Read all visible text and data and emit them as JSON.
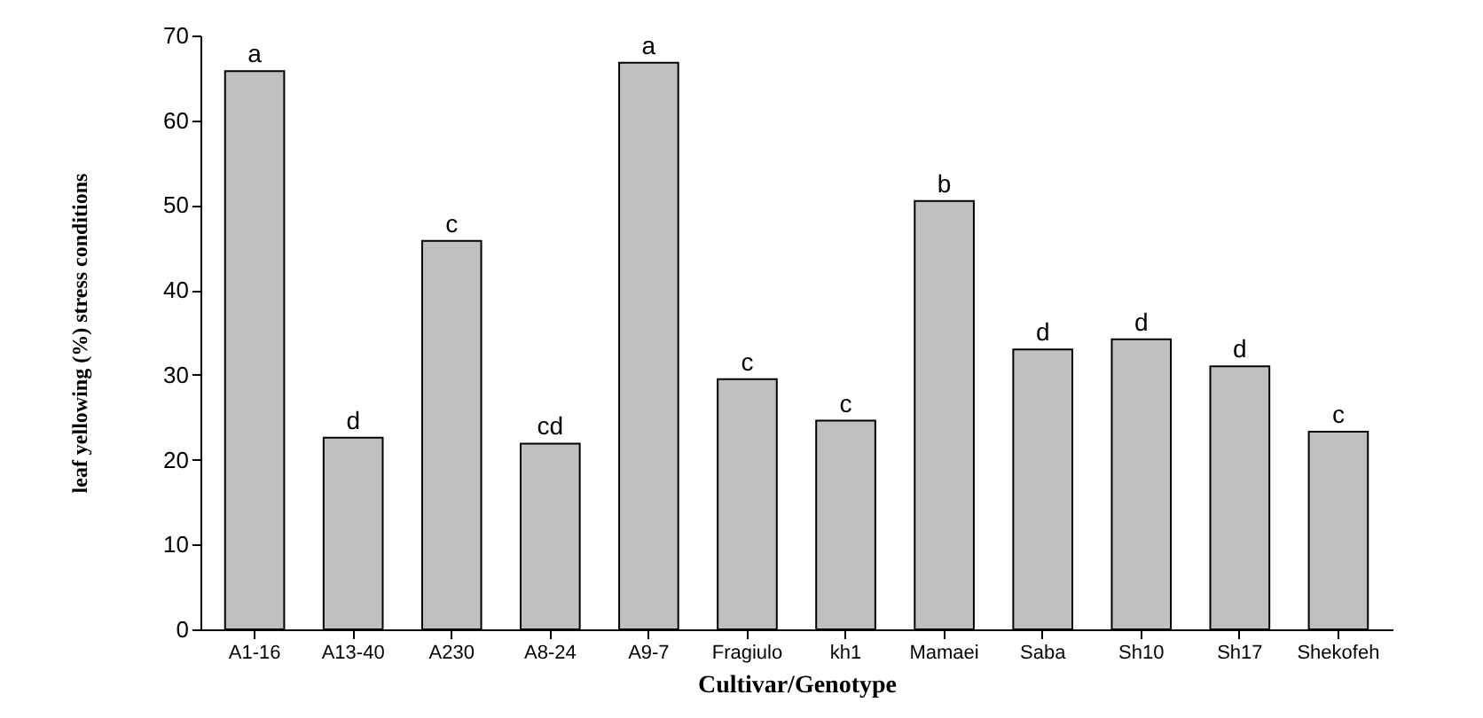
{
  "chart_data": {
    "type": "bar",
    "xlabel": "Cultivar/Genotype",
    "ylabel": "leaf yellowing (%)  stress conditions",
    "categories": [
      "A1-16",
      "A13-40",
      "A230",
      "A8-24",
      "A9-7",
      "Fragiulo",
      "kh1",
      "Mamaei",
      "Saba",
      "Sh10",
      "Sh17",
      "Shekofeh"
    ],
    "values": [
      65.8,
      22.6,
      45.8,
      21.9,
      66.8,
      29.5,
      24.6,
      50.5,
      33,
      34.2,
      31,
      23.3
    ],
    "color": "#c0c0c0",
    "ylim": [
      0,
      70
    ],
    "yticks": [
      0,
      10,
      20,
      30,
      40,
      50,
      60,
      70
    ],
    "grid": false,
    "annotations": [
      {
        "text": "a",
        "x": "A1-16",
        "y": 65.8
      },
      {
        "text": "d",
        "x": "A13-40",
        "y": 22.6
      },
      {
        "text": "c",
        "x": "A230",
        "y": 45.8
      },
      {
        "text": "cd",
        "x": "A8-24",
        "y": 21.9
      },
      {
        "text": "a",
        "x": "A9-7",
        "y": 66.8
      },
      {
        "text": "c",
        "x": "Fragiulo",
        "y": 29.5
      },
      {
        "text": "c",
        "x": "kh1",
        "y": 24.6
      },
      {
        "text": "b",
        "x": "Mamaei",
        "y": 50.5
      },
      {
        "text": "d",
        "x": "Saba",
        "y": 33
      },
      {
        "text": "d",
        "x": "Sh10",
        "y": 34.2
      },
      {
        "text": "d",
        "x": "Sh17",
        "y": 31
      },
      {
        "text": "c",
        "x": "Shekofeh",
        "y": 23.3
      }
    ]
  }
}
